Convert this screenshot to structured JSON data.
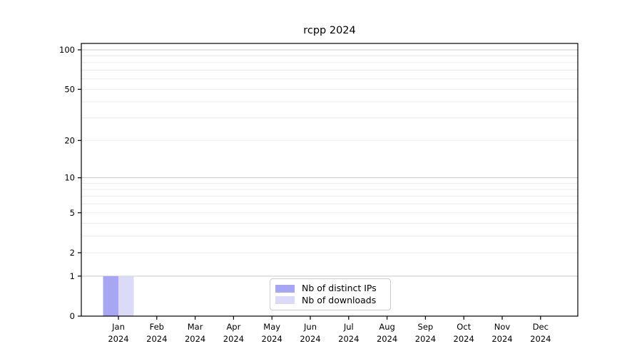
{
  "chart_data": {
    "type": "bar",
    "title": "rcpp 2024",
    "categories": [
      "Jan",
      "Feb",
      "Mar",
      "Apr",
      "May",
      "Jun",
      "Jul",
      "Aug",
      "Sep",
      "Oct",
      "Nov",
      "Dec"
    ],
    "category_year": "2024",
    "series": [
      {
        "name": "Nb of distinct IPs",
        "color": "#a6a6f2",
        "values": [
          1,
          0,
          0,
          0,
          0,
          0,
          0,
          0,
          0,
          0,
          0,
          0
        ]
      },
      {
        "name": "Nb of downloads",
        "color": "#dbdbf8",
        "values": [
          1,
          0,
          0,
          0,
          0,
          0,
          0,
          0,
          0,
          0,
          0,
          0
        ]
      }
    ],
    "xlabel": "",
    "ylabel": "",
    "yscale": "log1p",
    "ylim": [
      0,
      100
    ],
    "yticks": [
      0,
      1,
      2,
      5,
      10,
      20,
      50,
      100
    ],
    "grid_minor_values": [
      2,
      3,
      4,
      5,
      6,
      7,
      8,
      9,
      20,
      30,
      40,
      50,
      60,
      70,
      80,
      90
    ],
    "grid_major_values": [
      1,
      10,
      100
    ],
    "grid_on": true,
    "legend_position": "inside-bottom-center",
    "colors": {
      "axis": "#000000",
      "grid_minor": "#ececec",
      "grid_major": "#c9c9c9",
      "legend_border": "#cccccc",
      "background": "#ffffff"
    }
  }
}
